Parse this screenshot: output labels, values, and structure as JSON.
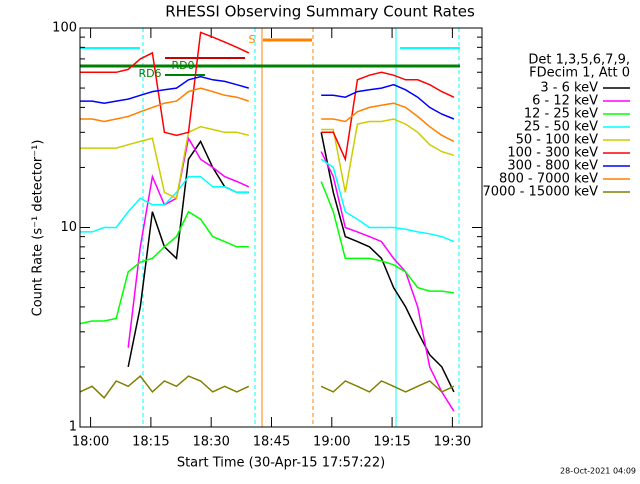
{
  "chart_data": {
    "type": "line",
    "title": "RHESSI Observing Summary Count Rates",
    "x_label": "Start Time (30-Apr-15 17:57:22)",
    "y_label": "Count Rate (s⁻¹ detector⁻¹)",
    "log_y": true,
    "xlim": [
      0,
      100
    ],
    "ylim": [
      1,
      100
    ],
    "yticks": [
      1,
      10,
      100
    ],
    "xticks": [
      {
        "value": 2.633,
        "label": "18:00"
      },
      {
        "value": 17.633,
        "label": "18:15"
      },
      {
        "value": 32.633,
        "label": "18:30"
      },
      {
        "value": 47.633,
        "label": "18:45"
      },
      {
        "value": 62.633,
        "label": "19:00"
      },
      {
        "value": 77.633,
        "label": "19:15"
      },
      {
        "value": 92.633,
        "label": "19:30"
      }
    ],
    "legend_header": [
      "Det 1,3,5,6,7,9,",
      "FDecim 1, Att 0"
    ],
    "legend_position": "right",
    "annotations": [
      "RD0",
      "RD6",
      "S"
    ],
    "timestamp": "28-Oct-2021 04:09",
    "x": [
      0,
      3,
      6,
      9,
      12,
      15,
      18,
      21,
      24,
      27,
      30,
      33,
      36,
      39,
      42,
      45,
      48,
      51,
      54,
      57,
      60,
      63,
      66,
      69,
      72,
      75,
      78,
      81,
      84,
      87,
      90,
      93
    ],
    "series": [
      {
        "name": "3 - 6 keV",
        "color": "#000000",
        "values": [
          null,
          null,
          null,
          null,
          2,
          4,
          12,
          8,
          7,
          22,
          27,
          20,
          16,
          15,
          15,
          null,
          null,
          null,
          null,
          null,
          30,
          15,
          9,
          8.5,
          8,
          7,
          5,
          4,
          3,
          2.3,
          2,
          1.5
        ]
      },
      {
        "name": "6 - 12 keV",
        "color": "#ff00ff",
        "values": [
          null,
          null,
          null,
          null,
          2.5,
          8,
          18,
          13,
          14,
          28,
          22,
          20,
          18,
          17,
          16,
          null,
          null,
          null,
          null,
          null,
          24,
          18,
          10,
          9.5,
          9,
          8.5,
          7,
          6,
          4,
          2,
          1.5,
          1.2
        ]
      },
      {
        "name": "12 - 25 keV",
        "color": "#00ff00",
        "values": [
          3.3,
          3.4,
          3.4,
          3.5,
          6,
          6.7,
          7,
          8,
          9,
          12,
          11,
          9,
          8.5,
          8,
          8,
          null,
          null,
          null,
          null,
          null,
          17,
          12,
          7,
          7,
          7,
          6.8,
          6.5,
          6,
          5,
          4.8,
          4.8,
          4.7
        ]
      },
      {
        "name": "25 - 50 keV",
        "color": "#00ffff",
        "values": [
          9.5,
          9.5,
          10,
          10,
          12,
          14,
          13,
          13,
          15,
          18,
          18,
          16,
          16,
          15,
          15,
          null,
          null,
          null,
          null,
          null,
          22,
          20,
          12,
          11,
          10,
          10,
          10,
          9.8,
          9.5,
          9.3,
          9,
          8.5
        ]
      },
      {
        "name": "50 - 100 keV",
        "color": "#cccc00",
        "values": [
          25,
          25,
          25,
          25,
          26,
          27,
          28,
          15,
          14,
          30,
          32,
          31,
          30,
          30,
          29,
          null,
          null,
          null,
          null,
          null,
          31,
          31,
          15,
          33,
          34,
          34,
          35,
          33,
          30,
          26,
          24,
          23
        ]
      },
      {
        "name": "100 - 300 keV",
        "color": "#ff0000",
        "values": [
          60,
          60,
          60,
          60,
          62,
          70,
          75,
          30,
          29,
          30,
          95,
          90,
          85,
          80,
          75,
          null,
          null,
          null,
          null,
          null,
          30,
          30,
          22,
          55,
          58,
          60,
          58,
          55,
          55,
          52,
          48,
          45
        ]
      },
      {
        "name": "300 - 800 keV",
        "color": "#0000ff",
        "values": [
          43,
          43,
          42,
          43,
          44,
          46,
          48,
          49,
          50,
          55,
          57,
          55,
          54,
          52,
          50,
          null,
          null,
          null,
          null,
          null,
          46,
          46,
          45,
          48,
          49,
          50,
          52,
          49,
          45,
          40,
          37,
          35
        ]
      },
      {
        "name": "800 - 7000 keV",
        "color": "#ff8000",
        "values": [
          35,
          35,
          34,
          35,
          36,
          38,
          40,
          42,
          43,
          48,
          50,
          48,
          46,
          45,
          43,
          null,
          null,
          null,
          null,
          null,
          35,
          35,
          34,
          38,
          40,
          41,
          42,
          40,
          36,
          32,
          29,
          27
        ]
      },
      {
        "name": "7000 - 15000 keV",
        "color": "#808000",
        "values": [
          1.5,
          1.6,
          1.4,
          1.7,
          1.6,
          1.8,
          1.5,
          1.7,
          1.6,
          1.8,
          1.7,
          1.5,
          1.6,
          1.5,
          1.6,
          null,
          null,
          null,
          null,
          null,
          1.6,
          1.5,
          1.7,
          1.6,
          1.5,
          1.7,
          1.6,
          1.5,
          1.6,
          1.7,
          1.5,
          1.6
        ]
      }
    ]
  }
}
